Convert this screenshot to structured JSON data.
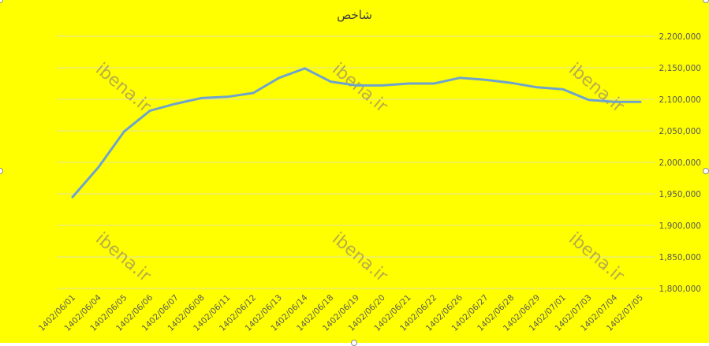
{
  "chart_data": {
    "type": "line",
    "title": "شاخص",
    "xlabel": "",
    "ylabel": "",
    "categories": [
      "1402/06/01",
      "1402/06/04",
      "1402/06/05",
      "1402/06/06",
      "1402/06/07",
      "1402/06/08",
      "1402/06/11",
      "1402/06/12",
      "1402/06/13",
      "1402/06/14",
      "1402/06/18",
      "1402/06/19",
      "1402/06/20",
      "1402/06/21",
      "1402/06/22",
      "1402/06/26",
      "1402/06/27",
      "1402/06/28",
      "1402/06/29",
      "1402/07/01",
      "1402/07/03",
      "1402/07/04",
      "1402/07/05"
    ],
    "series": [
      {
        "values": [
          1945000,
          1992000,
          2049000,
          2082000,
          2093000,
          2102000,
          2104000,
          2110000,
          2134000,
          2149000,
          2128000,
          2122000,
          2122000,
          2125000,
          2125000,
          2134000,
          2131000,
          2126000,
          2119000,
          2116000,
          2099000,
          2096000,
          2096000
        ]
      }
    ],
    "ylim": [
      1800000,
      2200000
    ],
    "y_ticks": [
      1800000,
      1850000,
      1900000,
      1950000,
      2000000,
      2050000,
      2100000,
      2150000,
      2200000
    ],
    "y_tick_labels": [
      "1,800,000",
      "1,850,000",
      "1,900,000",
      "1,950,000",
      "2,000,000",
      "2,050,000",
      "2,100,000",
      "2,150,000",
      "2,200,000"
    ],
    "y_axis_position": "right",
    "grid": true,
    "legend": "none"
  },
  "watermark": "ibena.ir",
  "colors": {
    "background": "#ffff00",
    "line": "#6fa3cc",
    "grid": "#e3e3a8",
    "text": "#595959",
    "watermark": "#a89a5a"
  }
}
